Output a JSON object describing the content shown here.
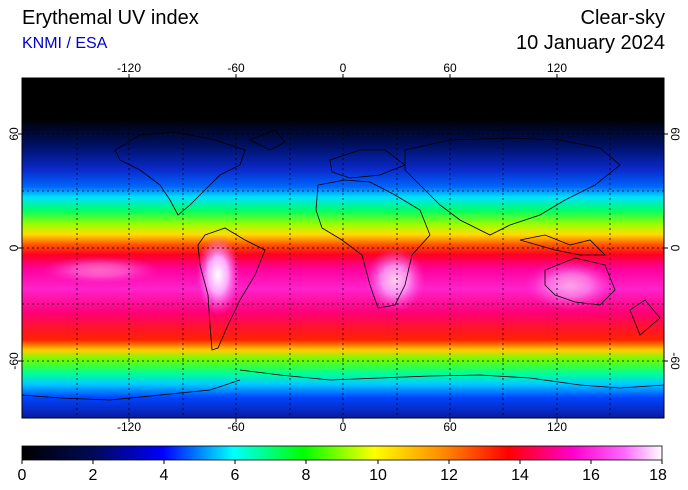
{
  "header": {
    "title": "Erythemal UV index",
    "subtitle": "KNMI / ESA",
    "mode": "Clear-sky",
    "date": "10 January 2024"
  },
  "map": {
    "longitude_ticks": [
      "-120",
      "-60",
      "0",
      "60",
      "120"
    ],
    "latitude_ticks": [
      "60",
      "0",
      "-60"
    ],
    "gridlines": "dashed",
    "colors": {
      "black": "#000000",
      "navy": "#000a55",
      "blue": "#0000ff",
      "cyan": "#00ffff",
      "green": "#00ff00",
      "yellow": "#ffff00",
      "orange": "#ff8800",
      "red": "#ff0000",
      "magenta": "#ff00cc",
      "pink": "#ff66ff",
      "white": "#ffffff"
    }
  },
  "colorbar": {
    "ticks": [
      "0",
      "2",
      "4",
      "6",
      "8",
      "10",
      "12",
      "14",
      "16",
      "18"
    ]
  }
}
